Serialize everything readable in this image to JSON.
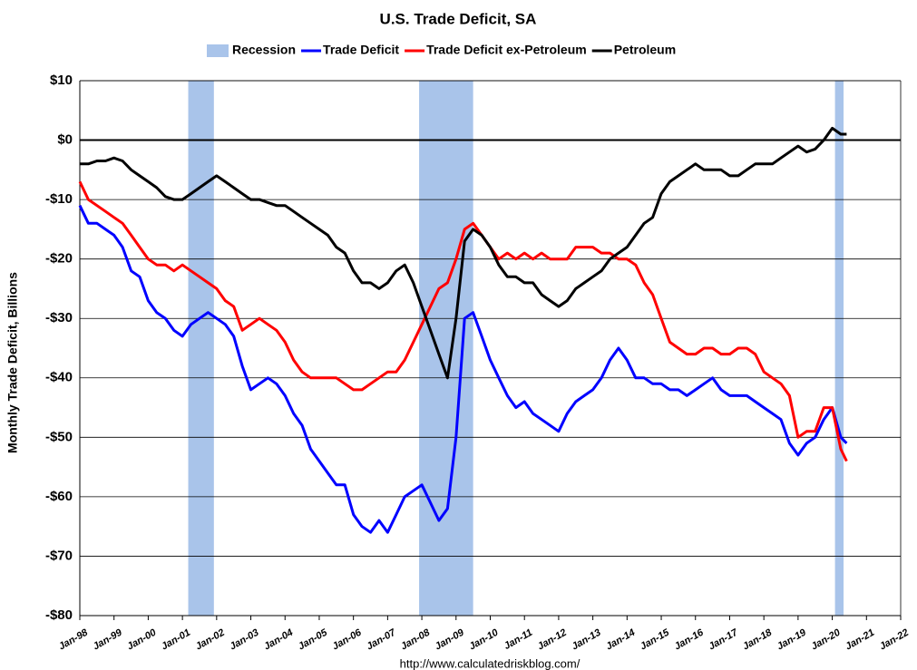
{
  "chart_data": {
    "type": "line",
    "title": "U.S. Trade Deficit, SA",
    "y_label": "Monthly Trade Deficit, Billions",
    "source": "http://www.calculatedriskblog.com/",
    "recession_label": "Recession",
    "recession_color": "#a9c4ea",
    "recessions": [
      [
        2001.17,
        2001.92
      ],
      [
        2007.92,
        2009.5
      ],
      [
        2020.08,
        2020.33
      ]
    ],
    "x": [
      1998,
      1998.25,
      1998.5,
      1998.75,
      1999,
      1999.25,
      1999.5,
      1999.75,
      2000,
      2000.25,
      2000.5,
      2000.75,
      2001,
      2001.25,
      2001.5,
      2001.75,
      2002,
      2002.25,
      2002.5,
      2002.75,
      2003,
      2003.25,
      2003.5,
      2003.75,
      2004,
      2004.25,
      2004.5,
      2004.75,
      2005,
      2005.25,
      2005.5,
      2005.75,
      2006,
      2006.25,
      2006.5,
      2006.75,
      2007,
      2007.25,
      2007.5,
      2007.75,
      2008,
      2008.25,
      2008.5,
      2008.75,
      2009,
      2009.25,
      2009.5,
      2009.75,
      2010,
      2010.25,
      2010.5,
      2010.75,
      2011,
      2011.25,
      2011.5,
      2011.75,
      2012,
      2012.25,
      2012.5,
      2012.75,
      2013,
      2013.25,
      2013.5,
      2013.75,
      2014,
      2014.25,
      2014.5,
      2014.75,
      2015,
      2015.25,
      2015.5,
      2015.75,
      2016,
      2016.25,
      2016.5,
      2016.75,
      2017,
      2017.25,
      2017.5,
      2017.75,
      2018,
      2018.25,
      2018.5,
      2018.75,
      2019,
      2019.25,
      2019.5,
      2019.75,
      2020,
      2020.25,
      2020.42
    ],
    "series": [
      {
        "name": "Trade Deficit",
        "color": "#0000ff",
        "values": [
          -11,
          -14,
          -14,
          -15,
          -16,
          -18,
          -22,
          -23,
          -27,
          -29,
          -30,
          -32,
          -33,
          -31,
          -30,
          -29,
          -30,
          -31,
          -33,
          -38,
          -42,
          -41,
          -40,
          -41,
          -43,
          -46,
          -48,
          -52,
          -54,
          -56,
          -58,
          -58,
          -63,
          -65,
          -66,
          -64,
          -66,
          -63,
          -60,
          -59,
          -58,
          -61,
          -64,
          -62,
          -50,
          -30,
          -29,
          -33,
          -37,
          -40,
          -43,
          -45,
          -44,
          -46,
          -47,
          -48,
          -49,
          -46,
          -44,
          -43,
          -42,
          -40,
          -37,
          -35,
          -37,
          -40,
          -40,
          -41,
          -41,
          -42,
          -42,
          -43,
          -42,
          -41,
          -40,
          -42,
          -43,
          -43,
          -43,
          -44,
          -45,
          -46,
          -47,
          -51,
          -53,
          -51,
          -50,
          -47,
          -45,
          -50,
          -51
        ]
      },
      {
        "name": "Trade Deficit ex-Petroleum",
        "color": "#ff0000",
        "values": [
          -7,
          -10,
          -11,
          -12,
          -13,
          -14,
          -16,
          -18,
          -20,
          -21,
          -21,
          -22,
          -21,
          -22,
          -23,
          -24,
          -25,
          -27,
          -28,
          -32,
          -31,
          -30,
          -31,
          -32,
          -34,
          -37,
          -39,
          -40,
          -40,
          -40,
          -40,
          -41,
          -42,
          -42,
          -41,
          -40,
          -39,
          -39,
          -37,
          -34,
          -31,
          -28,
          -25,
          -24,
          -20,
          -15,
          -14,
          -16,
          -18,
          -20,
          -19,
          -20,
          -19,
          -20,
          -19,
          -20,
          -20,
          -20,
          -18,
          -18,
          -18,
          -19,
          -19,
          -20,
          -20,
          -21,
          -24,
          -26,
          -30,
          -34,
          -35,
          -36,
          -36,
          -35,
          -35,
          -36,
          -36,
          -35,
          -35,
          -36,
          -39,
          -40,
          -41,
          -43,
          -50,
          -49,
          -49,
          -45,
          -45,
          -52,
          -54
        ]
      },
      {
        "name": "Petroleum",
        "color": "#000000",
        "values": [
          -4,
          -4,
          -3.5,
          -3.5,
          -3,
          -3.5,
          -5,
          -6,
          -7,
          -8,
          -9.5,
          -10,
          -10,
          -9,
          -8,
          -7,
          -6,
          -7,
          -8,
          -9,
          -10,
          -10,
          -10.5,
          -11,
          -11,
          -12,
          -13,
          -14,
          -15,
          -16,
          -18,
          -19,
          -22,
          -24,
          -24,
          -25,
          -24,
          -22,
          -21,
          -24,
          -28,
          -32,
          -36,
          -40,
          -30,
          -17,
          -15,
          -16,
          -18,
          -21,
          -23,
          -23,
          -24,
          -24,
          -26,
          -27,
          -28,
          -27,
          -25,
          -24,
          -23,
          -22,
          -20,
          -19,
          -18,
          -16,
          -14,
          -13,
          -9,
          -7,
          -6,
          -5,
          -4,
          -5,
          -5,
          -5,
          -6,
          -6,
          -5,
          -4,
          -4,
          -4,
          -3,
          -2,
          -1,
          -2,
          -1.5,
          0,
          2,
          1,
          1
        ]
      }
    ],
    "xlim": [
      1998,
      2022
    ],
    "xticks": [
      {
        "value": 1998,
        "label": "Jan-98"
      },
      {
        "value": 1999,
        "label": "Jan-99"
      },
      {
        "value": 2000,
        "label": "Jan-00"
      },
      {
        "value": 2001,
        "label": "Jan-01"
      },
      {
        "value": 2002,
        "label": "Jan-02"
      },
      {
        "value": 2003,
        "label": "Jan-03"
      },
      {
        "value": 2004,
        "label": "Jan-04"
      },
      {
        "value": 2005,
        "label": "Jan-05"
      },
      {
        "value": 2006,
        "label": "Jan-06"
      },
      {
        "value": 2007,
        "label": "Jan-07"
      },
      {
        "value": 2008,
        "label": "Jan-08"
      },
      {
        "value": 2009,
        "label": "Jan-09"
      },
      {
        "value": 2010,
        "label": "Jan-10"
      },
      {
        "value": 2011,
        "label": "Jan-11"
      },
      {
        "value": 2012,
        "label": "Jan-12"
      },
      {
        "value": 2013,
        "label": "Jan-13"
      },
      {
        "value": 2014,
        "label": "Jan-14"
      },
      {
        "value": 2015,
        "label": "Jan-15"
      },
      {
        "value": 2016,
        "label": "Jan-16"
      },
      {
        "value": 2017,
        "label": "Jan-17"
      },
      {
        "value": 2018,
        "label": "Jan-18"
      },
      {
        "value": 2019,
        "label": "Jan-19"
      },
      {
        "value": 2020,
        "label": "Jan-20"
      },
      {
        "value": 2021,
        "label": "Jan-21"
      },
      {
        "value": 2022,
        "label": "Jan-22"
      }
    ],
    "ylim": [
      -80,
      10
    ],
    "yticks": [
      {
        "value": 10,
        "label": "$10"
      },
      {
        "value": 0,
        "label": "$0"
      },
      {
        "value": -10,
        "label": "-$10"
      },
      {
        "value": -20,
        "label": "-$20"
      },
      {
        "value": -30,
        "label": "-$30"
      },
      {
        "value": -40,
        "label": "-$40"
      },
      {
        "value": -50,
        "label": "-$50"
      },
      {
        "value": -60,
        "label": "-$60"
      },
      {
        "value": -70,
        "label": "-$70"
      },
      {
        "value": -80,
        "label": "-$80"
      }
    ],
    "grid": true
  }
}
